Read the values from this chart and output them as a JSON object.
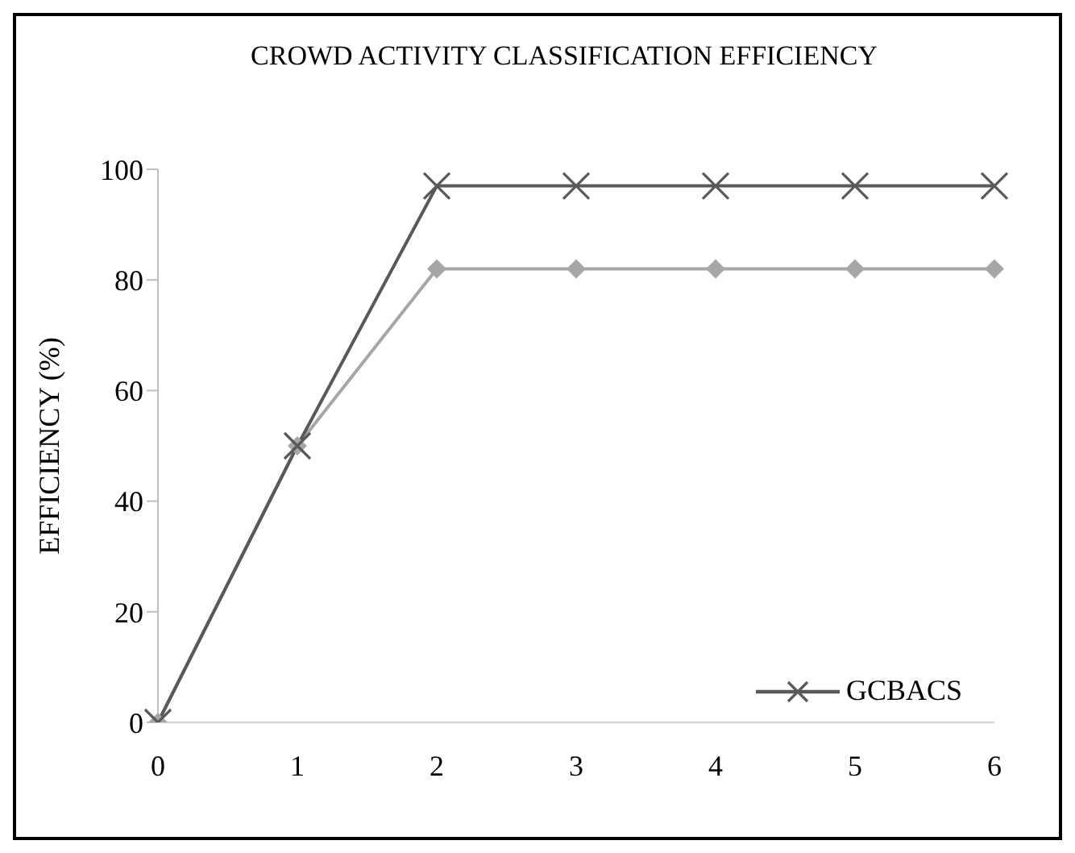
{
  "chart_data": {
    "type": "line",
    "title": "CROWD ACTIVITY CLASSIFICATION EFFICIENCY",
    "ylabel": "EFFICIENCY (%)",
    "categories": [
      "0",
      "1",
      "2",
      "3",
      "4",
      "5",
      "6"
    ],
    "series": [
      {
        "name": "GCBACS",
        "color": "#595959",
        "marker": "cross",
        "values": [
          0,
          50,
          97,
          97,
          97,
          97,
          97
        ]
      },
      {
        "color": "#a6a6a6",
        "marker": "diamond",
        "values": [
          0,
          50,
          82,
          82,
          82,
          82,
          82
        ]
      }
    ],
    "ylim": [
      0,
      100
    ],
    "yticks": [
      0,
      20,
      40,
      60,
      80,
      100
    ],
    "grid": false,
    "legend": "bottom right"
  }
}
